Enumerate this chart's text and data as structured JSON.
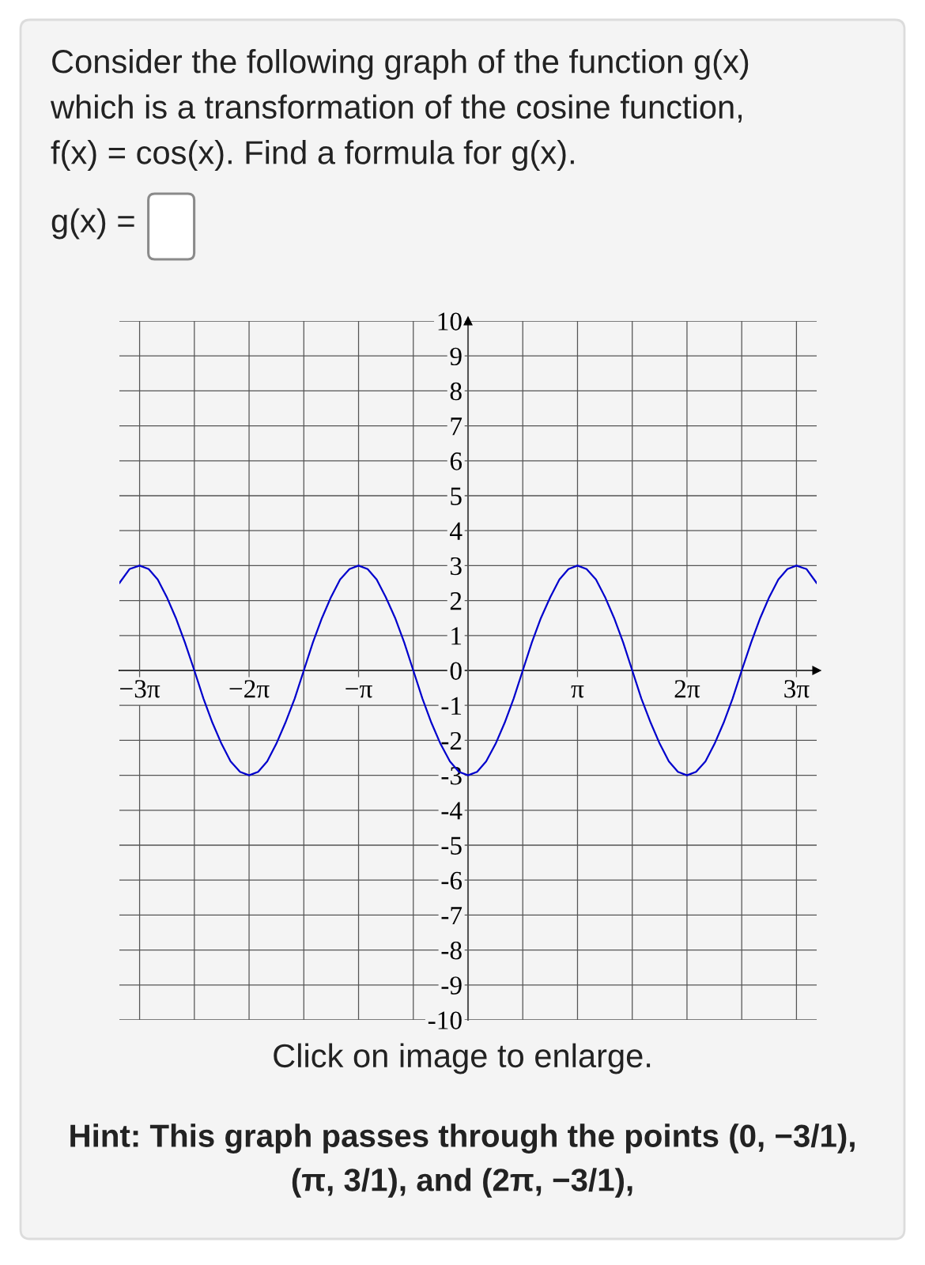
{
  "chart_data": {
    "type": "line",
    "title": "Consider the following graph of the function g(x) which is a transformation of the cosine function, f(x) = cos(x). Find a formula for g(x).",
    "annotations": [
      "g(x) =",
      "Click on image to enlarge.",
      "Hint: This graph passes through the points (0, −3/1), (π, 3/1), and (2π, −3/1),"
    ],
    "x": [
      -10,
      -9.71,
      -9.42,
      -9.16,
      -8.9,
      -8.64,
      -8.38,
      -8.12,
      -7.85,
      -7.59,
      -7.33,
      -7.07,
      -6.81,
      -6.54,
      -6.28,
      -6.02,
      -5.76,
      -5.5,
      -5.24,
      -4.97,
      -4.71,
      -4.45,
      -4.19,
      -3.93,
      -3.67,
      -3.4,
      -3.14,
      -2.88,
      -2.62,
      -2.36,
      -2.09,
      -1.83,
      -1.57,
      -1.31,
      -1.05,
      -0.79,
      -0.52,
      -0.26,
      0,
      0.26,
      0.52,
      0.79,
      1.05,
      1.31,
      1.57,
      1.83,
      2.09,
      2.36,
      2.62,
      2.88,
      3.14,
      3.4,
      3.67,
      3.93,
      4.19,
      4.45,
      4.71,
      4.97,
      5.24,
      5.5,
      5.76,
      6.02,
      6.28,
      6.54,
      6.81,
      7.07,
      7.33,
      7.59,
      7.85,
      8.12,
      8.38,
      8.64,
      8.9,
      9.16,
      9.42,
      9.71,
      10
    ],
    "series": [
      {
        "color": "#0000cc",
        "values": [
          2.5,
          2.9,
          3,
          2.9,
          2.6,
          2.1,
          1.5,
          0.8,
          0,
          -0.8,
          -1.5,
          -2.1,
          -2.6,
          -2.9,
          -3,
          -2.9,
          -2.6,
          -2.1,
          -1.5,
          -0.8,
          0,
          0.8,
          1.5,
          2.1,
          2.6,
          2.9,
          3,
          2.9,
          2.6,
          2.1,
          1.5,
          0.8,
          0,
          -0.8,
          -1.5,
          -2.1,
          -2.6,
          -2.9,
          -3,
          -2.9,
          -2.6,
          -2.1,
          -1.5,
          -0.8,
          0,
          0.8,
          1.5,
          2.1,
          2.6,
          2.9,
          3,
          2.9,
          2.6,
          2.1,
          1.5,
          0.8,
          0,
          -0.8,
          -1.5,
          -2.1,
          -2.6,
          -2.9,
          -3,
          -2.9,
          -2.6,
          -2.1,
          -1.5,
          -0.8,
          0,
          0.8,
          1.5,
          2.1,
          2.6,
          2.9,
          3,
          2.9,
          2.5
        ]
      }
    ],
    "xlim": [
      -10,
      10
    ],
    "ylim": [
      -10,
      10
    ],
    "xticks": [
      {
        "value": -9.42,
        "label": "−3π"
      },
      {
        "value": -7.85,
        "label": null
      },
      {
        "value": -6.28,
        "label": "−2π"
      },
      {
        "value": -4.71,
        "label": null
      },
      {
        "value": -3.14,
        "label": "−π"
      },
      {
        "value": -1.57,
        "label": null
      },
      {
        "value": 0,
        "label": null
      },
      {
        "value": 1.57,
        "label": null
      },
      {
        "value": 3.14,
        "label": "π"
      },
      {
        "value": 4.71,
        "label": null
      },
      {
        "value": 6.28,
        "label": "2π"
      },
      {
        "value": 7.85,
        "label": null
      },
      {
        "value": 9.42,
        "label": "3π"
      }
    ],
    "yticks": [
      -10,
      -9,
      -8,
      -7,
      -6,
      -5,
      -4,
      -3,
      -2,
      -1,
      0,
      1,
      2,
      3,
      4,
      5,
      6,
      7,
      8,
      9,
      10
    ],
    "grid": true
  }
}
